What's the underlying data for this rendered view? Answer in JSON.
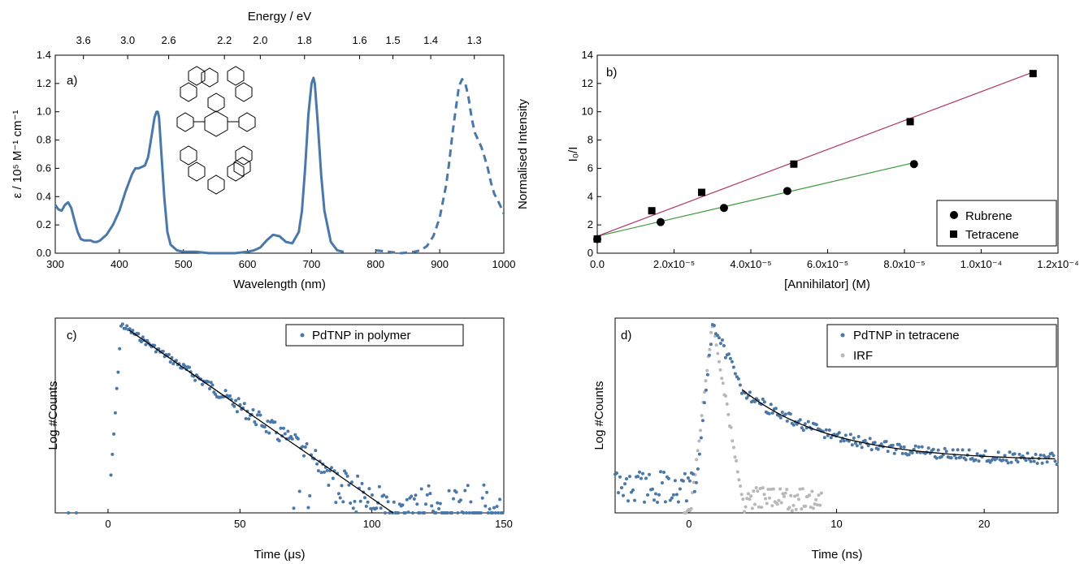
{
  "colors": {
    "absorption": "#4a78a8",
    "rubrene_fit": "#3a9a3a",
    "tetracene_fit": "#b0306a",
    "decay": "#4a78a8",
    "irf": "#b8b8b8",
    "fit": "#000000"
  },
  "chart_data": [
    {
      "type": "line",
      "panel_label": "a)",
      "xlabel": "Wavelength (nm)",
      "ylabel": "ε / 10⁵ M⁻¹ cm⁻¹",
      "ylabel_right": "Normalised Intensity",
      "top_axis_label": "Energy / eV",
      "top_ticks": [
        "3.6",
        "3.0",
        "2.6",
        "2.2",
        "2.0",
        "1.8",
        "1.6",
        "1.5",
        "1.4",
        "1.3"
      ],
      "top_tick_wavelengths": [
        344,
        413,
        477,
        564,
        620,
        689,
        775,
        827,
        886,
        954
      ],
      "xlim": [
        300,
        1000
      ],
      "ylim": [
        0,
        1.4
      ],
      "xticks": [
        "300",
        "400",
        "500",
        "600",
        "700",
        "800",
        "900",
        "1000"
      ],
      "yticks": [
        "0.0",
        "0.2",
        "0.4",
        "0.6",
        "0.8",
        "1.0",
        "1.2",
        "1.4"
      ],
      "grid": false,
      "series": [
        {
          "style": "solid",
          "x": [
            300,
            305,
            310,
            315,
            320,
            325,
            330,
            335,
            340,
            345,
            350,
            355,
            360,
            365,
            370,
            380,
            390,
            400,
            410,
            420,
            425,
            430,
            435,
            440,
            445,
            450,
            455,
            458,
            460,
            462,
            465,
            470,
            475,
            480,
            490,
            500,
            520,
            540,
            560,
            580,
            600,
            610,
            620,
            630,
            640,
            650,
            660,
            670,
            680,
            685,
            690,
            695,
            700,
            703,
            705,
            710,
            715,
            720,
            730,
            740,
            750
          ],
          "y": [
            0.34,
            0.31,
            0.3,
            0.34,
            0.36,
            0.32,
            0.23,
            0.15,
            0.1,
            0.09,
            0.09,
            0.09,
            0.08,
            0.08,
            0.09,
            0.13,
            0.2,
            0.3,
            0.44,
            0.56,
            0.6,
            0.6,
            0.61,
            0.62,
            0.68,
            0.82,
            0.96,
            1.0,
            1.0,
            0.96,
            0.75,
            0.4,
            0.15,
            0.06,
            0.02,
            0.01,
            0.01,
            0.0,
            0.0,
            0.0,
            0.01,
            0.02,
            0.04,
            0.09,
            0.13,
            0.12,
            0.08,
            0.07,
            0.15,
            0.3,
            0.6,
            0.98,
            1.2,
            1.24,
            1.2,
            0.9,
            0.55,
            0.3,
            0.08,
            0.02,
            0.01
          ]
        },
        {
          "style": "dashed",
          "x": [
            800,
            820,
            840,
            860,
            870,
            880,
            890,
            900,
            910,
            915,
            920,
            925,
            930,
            935,
            940,
            945,
            950,
            955,
            960,
            965,
            970,
            975,
            980,
            985,
            990,
            995,
            1000
          ],
          "y": [
            0.02,
            0.01,
            0.0,
            0.01,
            0.02,
            0.05,
            0.12,
            0.25,
            0.48,
            0.65,
            0.85,
            1.02,
            1.18,
            1.23,
            1.2,
            1.1,
            0.95,
            0.85,
            0.8,
            0.75,
            0.68,
            0.6,
            0.5,
            0.42,
            0.38,
            0.33,
            0.28
          ]
        }
      ]
    },
    {
      "type": "scatter",
      "panel_label": "b)",
      "xlabel": "[Annihilator] (M)",
      "ylabel": "I₀/I",
      "xlim": [
        0,
        0.00012
      ],
      "ylim": [
        0,
        14
      ],
      "xticks": [
        "0.0",
        "2.0x10⁻⁵",
        "4.0x10⁻⁵",
        "6.0x10⁻⁵",
        "8.0x10⁻⁵",
        "1.0x10⁻⁴",
        "1.2x10⁻⁴"
      ],
      "yticks": [
        "0",
        "2",
        "4",
        "6",
        "8",
        "10",
        "12",
        "14"
      ],
      "legend_position": "bottom-right",
      "series": [
        {
          "name": "Rubrene",
          "marker": "circle",
          "x": [
            0,
            1.65e-05,
            3.3e-05,
            4.95e-05,
            8.25e-05
          ],
          "y": [
            1.0,
            2.2,
            3.2,
            4.4,
            6.3
          ],
          "fit": [
            [
              0,
              1.2
            ],
            [
              8.25e-05,
              6.4
            ]
          ]
        },
        {
          "name": "Tetracene",
          "marker": "square",
          "x": [
            0,
            1.42e-05,
            2.72e-05,
            5.12e-05,
            8.15e-05,
            0.0001135
          ],
          "y": [
            1.0,
            3.0,
            4.3,
            6.3,
            9.3,
            12.7
          ],
          "fit": [
            [
              0,
              1.2
            ],
            [
              0.0001135,
              12.8
            ]
          ]
        }
      ]
    },
    {
      "type": "scatter",
      "panel_label": "c)",
      "xlabel": "Time (μs)",
      "ylabel": "Log #Counts",
      "xlim": [
        -20,
        150
      ],
      "xticks": [
        "0",
        "50",
        "100",
        "150"
      ],
      "legend_position": "top-right",
      "series": [
        {
          "name": "PdTNP in polymer",
          "decay_start": 5,
          "decay_time_us": 25
        }
      ]
    },
    {
      "type": "scatter",
      "panel_label": "d)",
      "xlabel": "Time (ns)",
      "ylabel": "Log #Counts",
      "xlim": [
        -5,
        25
      ],
      "xticks": [
        "0",
        "10",
        "20"
      ],
      "legend_position": "top-right",
      "series": [
        {
          "name": "PdTNP in tetracene",
          "peak_ns": 1.6
        },
        {
          "name": "IRF",
          "peak_ns": 1.6
        }
      ]
    }
  ]
}
